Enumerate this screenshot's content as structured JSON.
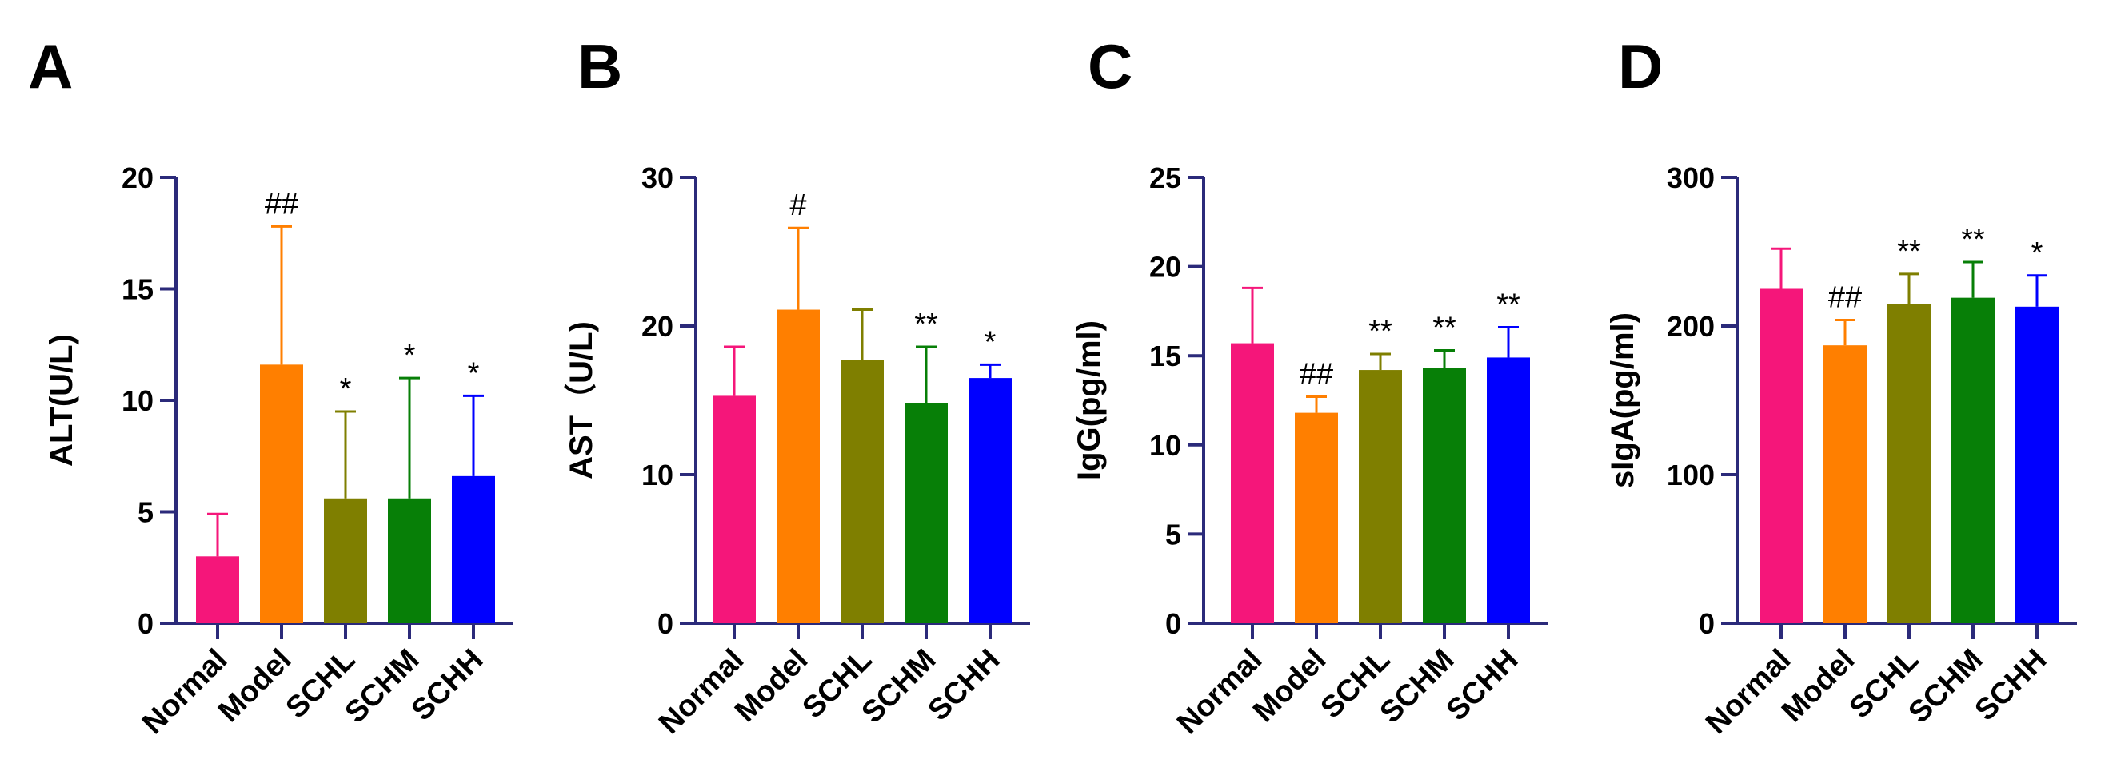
{
  "chart_data": [
    {
      "type": "bar",
      "panel": "A",
      "ylabel": "ALT(U/L)",
      "ylim": [
        0,
        20
      ],
      "yticks": [
        0,
        5,
        10,
        15,
        20
      ],
      "categories": [
        "Normal",
        "Model",
        "SCHL",
        "SCHM",
        "SCHH"
      ],
      "values": [
        3.0,
        11.6,
        5.6,
        5.6,
        6.6
      ],
      "errors": [
        1.9,
        6.2,
        3.9,
        5.4,
        3.6
      ],
      "annotations": [
        "",
        "##",
        "*",
        "*",
        "*"
      ],
      "colors": [
        "#f5167a",
        "#ff7f00",
        "#7f7f00",
        "#077f07",
        "#0000ff"
      ]
    },
    {
      "type": "bar",
      "panel": "B",
      "ylabel": "AST（U/L)",
      "ylim": [
        0,
        30
      ],
      "yticks": [
        0,
        10,
        20,
        30
      ],
      "categories": [
        "Normal",
        "Model",
        "SCHL",
        "SCHM",
        "SCHH"
      ],
      "values": [
        15.3,
        21.1,
        17.7,
        14.8,
        16.5
      ],
      "errors": [
        3.3,
        5.5,
        3.4,
        3.8,
        0.9
      ],
      "annotations": [
        "",
        "#",
        "",
        "**",
        "*"
      ],
      "colors": [
        "#f5167a",
        "#ff7f00",
        "#7f7f00",
        "#077f07",
        "#0000ff"
      ]
    },
    {
      "type": "bar",
      "panel": "C",
      "ylabel": "IgG(pg/ml)",
      "ylim": [
        0,
        25
      ],
      "yticks": [
        0,
        5,
        10,
        15,
        20,
        25
      ],
      "categories": [
        "Normal",
        "Model",
        "SCHL",
        "SCHM",
        "SCHH"
      ],
      "values": [
        15.7,
        11.8,
        14.2,
        14.3,
        14.9
      ],
      "errors": [
        3.1,
        0.9,
        0.9,
        1.0,
        1.7
      ],
      "annotations": [
        "",
        "##",
        "**",
        "**",
        "**"
      ],
      "colors": [
        "#f5167a",
        "#ff7f00",
        "#7f7f00",
        "#077f07",
        "#0000ff"
      ]
    },
    {
      "type": "bar",
      "panel": "D",
      "ylabel": "sIgA(pg/ml)",
      "ylim": [
        0,
        300
      ],
      "yticks": [
        0,
        100,
        200,
        300
      ],
      "categories": [
        "Normal",
        "Model",
        "SCHL",
        "SCHM",
        "SCHH"
      ],
      "values": [
        225,
        187,
        215,
        219,
        213
      ],
      "errors": [
        27,
        17,
        20,
        24,
        21
      ],
      "annotations": [
        "",
        "##",
        "**",
        "**",
        "*"
      ],
      "colors": [
        "#f5167a",
        "#ff7f00",
        "#7f7f00",
        "#077f07",
        "#0000ff"
      ]
    }
  ]
}
